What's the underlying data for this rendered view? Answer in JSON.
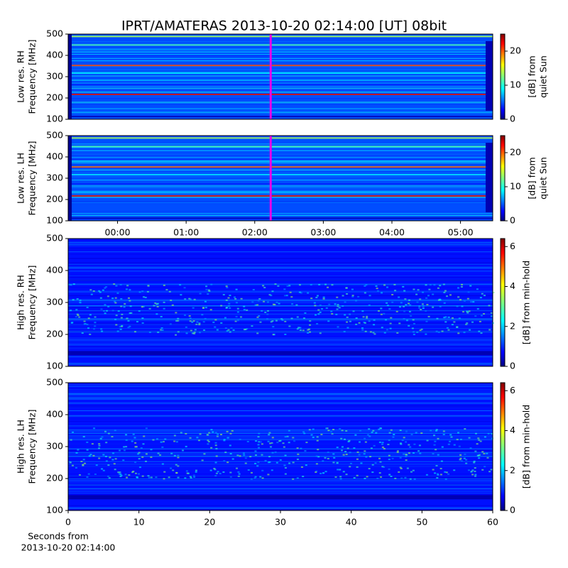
{
  "title": "IPRT/AMATERAS 2013-10-20 02:14:00 [UT]   08bit",
  "chart_data": [
    {
      "type": "heatmap",
      "colormap": "jet",
      "ylabel": [
        "Low res. RH",
        "Frequency [MHz]"
      ],
      "ylim": [
        100,
        500
      ],
      "yticks": [
        100,
        200,
        300,
        400,
        500
      ],
      "xlim": [
        -0.72,
        5.47
      ],
      "cursor_x": 2.233,
      "colorbar": {
        "label": [
          "[dB] from",
          "quiet Sun"
        ],
        "lim": [
          0,
          25
        ],
        "ticks": [
          0,
          10,
          20
        ]
      }
    },
    {
      "type": "heatmap",
      "colormap": "jet",
      "ylabel": [
        "Low res. LH",
        "Frequency [MHz]"
      ],
      "ylim": [
        100,
        500
      ],
      "yticks": [
        100,
        200,
        300,
        400,
        500
      ],
      "xlim": [
        -0.72,
        5.47
      ],
      "cursor_x": 2.233,
      "xticks": [
        {
          "value": 0,
          "label": "00:00"
        },
        {
          "value": 1,
          "label": "01:00"
        },
        {
          "value": 2,
          "label": "02:00"
        },
        {
          "value": 3,
          "label": "03:00"
        },
        {
          "value": 4,
          "label": "04:00"
        },
        {
          "value": 5,
          "label": "05:00"
        }
      ],
      "colorbar": {
        "label": [
          "[dB] from",
          "quiet Sun"
        ],
        "lim": [
          0,
          25
        ],
        "ticks": [
          0,
          10,
          20
        ]
      }
    },
    {
      "type": "heatmap",
      "colormap": "jet",
      "ylabel": [
        "High res. RH",
        "Frequency [MHz]"
      ],
      "ylim": [
        100,
        500
      ],
      "yticks": [
        100,
        200,
        300,
        400,
        500
      ],
      "xlim": [
        0,
        60
      ],
      "colorbar": {
        "label": [
          "[dB] from min-hold"
        ],
        "lim": [
          0,
          6.4
        ],
        "ticks": [
          0,
          2,
          4,
          6
        ]
      }
    },
    {
      "type": "heatmap",
      "colormap": "jet",
      "ylabel": [
        "High res. LH",
        "Frequency [MHz]"
      ],
      "ylim": [
        100,
        500
      ],
      "yticks": [
        100,
        200,
        300,
        400,
        500
      ],
      "xlim": [
        0,
        60
      ],
      "xticks": [
        0,
        10,
        20,
        30,
        40,
        50,
        60
      ],
      "xlabel": [
        "Seconds from",
        "2013-10-20 02:14:00"
      ],
      "colorbar": {
        "label": [
          "[dB] from min-hold"
        ],
        "lim": [
          0,
          6.4
        ],
        "ticks": [
          0,
          2,
          4,
          6
        ]
      }
    }
  ]
}
